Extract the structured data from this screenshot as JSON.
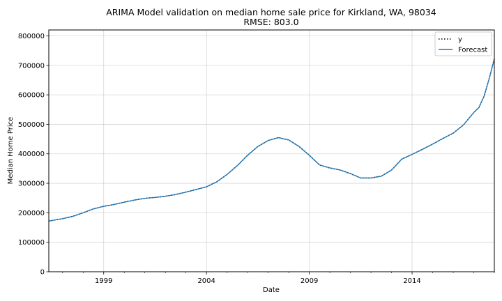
{
  "chart_data": {
    "type": "line",
    "title": "ARIMA Model validation on median home sale price for Kirkland, WA, 98034",
    "subtitle": "RMSE: 803.0",
    "xlabel": "Date",
    "ylabel": "Median Home Price",
    "xlim": [
      1996.33,
      2018.0
    ],
    "ylim": [
      0,
      820000
    ],
    "x_ticks": [
      1999,
      2004,
      2009,
      2014
    ],
    "x_tick_labels": [
      "1999",
      "2004",
      "2009",
      "2014"
    ],
    "y_ticks": [
      0,
      100000,
      200000,
      300000,
      400000,
      500000,
      600000,
      700000,
      800000
    ],
    "y_tick_labels": [
      "0",
      "100000",
      "200000",
      "300000",
      "400000",
      "500000",
      "600000",
      "700000",
      "800000"
    ],
    "grid": true,
    "legend": "top-right",
    "series": [
      {
        "name": "y",
        "style": "dotted",
        "color": "#000000",
        "x": [
          1996.33,
          1997.0,
          1997.5,
          1998.0,
          1998.5,
          1999.0,
          1999.5,
          2000.0,
          2000.5,
          2001.0,
          2001.5,
          2002.0,
          2002.5,
          2003.0,
          2003.5,
          2004.0,
          2004.5,
          2005.0,
          2005.5,
          2006.0,
          2006.5,
          2007.0,
          2007.5,
          2008.0,
          2008.5,
          2009.0,
          2009.5,
          2010.0,
          2010.5,
          2011.0,
          2011.5,
          2012.0,
          2012.5,
          2013.0,
          2013.5,
          2014.0,
          2014.5,
          2015.0,
          2015.5,
          2016.0,
          2016.5,
          2017.0,
          2017.25,
          2017.5,
          2017.75,
          2018.0
        ],
        "y": [
          172000,
          180000,
          188000,
          200000,
          213000,
          222000,
          228000,
          236000,
          243000,
          249000,
          252000,
          256000,
          262000,
          270000,
          279000,
          288000,
          305000,
          330000,
          360000,
          395000,
          425000,
          445000,
          455000,
          447000,
          425000,
          395000,
          362000,
          352000,
          345000,
          333000,
          318000,
          318000,
          324000,
          345000,
          382000,
          398000,
          415000,
          433000,
          452000,
          470000,
          498000,
          540000,
          557000,
          595000,
          655000,
          722000
        ]
      },
      {
        "name": "Forecast",
        "style": "solid",
        "color": "#1f77b4",
        "x": [
          1996.33,
          1997.0,
          1997.5,
          1998.0,
          1998.5,
          1999.0,
          1999.5,
          2000.0,
          2000.5,
          2001.0,
          2001.5,
          2002.0,
          2002.5,
          2003.0,
          2003.5,
          2004.0,
          2004.5,
          2005.0,
          2005.5,
          2006.0,
          2006.5,
          2007.0,
          2007.5,
          2008.0,
          2008.5,
          2009.0,
          2009.5,
          2010.0,
          2010.5,
          2011.0,
          2011.5,
          2012.0,
          2012.5,
          2013.0,
          2013.5,
          2014.0,
          2014.5,
          2015.0,
          2015.5,
          2016.0,
          2016.5,
          2017.0,
          2017.25,
          2017.5,
          2017.75,
          2018.0
        ],
        "y": [
          172000,
          180000,
          188000,
          200000,
          213000,
          222000,
          228000,
          236000,
          243000,
          249000,
          252000,
          256000,
          262000,
          270000,
          279000,
          288000,
          305000,
          330000,
          360000,
          395000,
          425000,
          445000,
          455000,
          447000,
          425000,
          395000,
          362000,
          352000,
          345000,
          333000,
          318000,
          318000,
          324000,
          345000,
          382000,
          398000,
          415000,
          433000,
          452000,
          470000,
          498000,
          540000,
          557000,
          595000,
          655000,
          722000
        ]
      }
    ]
  }
}
